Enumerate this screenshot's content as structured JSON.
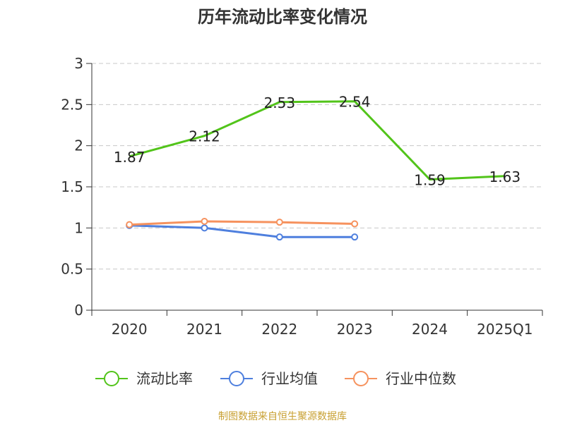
{
  "chart_data": {
    "type": "line",
    "title": "历年流动比率变化情况",
    "xlabel": "",
    "ylabel": "",
    "categories": [
      "2020",
      "2021",
      "2022",
      "2023",
      "2024",
      "2025Q1"
    ],
    "ylim": [
      0,
      3
    ],
    "yticks": [
      "0",
      "0.5",
      "1",
      "1.5",
      "2",
      "2.5",
      "3"
    ],
    "grid": true,
    "legend_position": "bottom",
    "series": [
      {
        "name": "流动比率",
        "color": "#52c41a",
        "values": [
          1.87,
          2.12,
          2.53,
          2.54,
          1.59,
          1.63
        ],
        "labels": [
          "1.87",
          "2.12",
          "2.53",
          "2.54",
          "1.59",
          "1.63"
        ]
      },
      {
        "name": "行业均值",
        "color": "#4e7fde",
        "values": [
          1.03,
          1.0,
          0.89,
          0.89,
          null,
          null
        ]
      },
      {
        "name": "行业中位数",
        "color": "#f6925e",
        "values": [
          1.04,
          1.08,
          1.07,
          1.05,
          null,
          null
        ]
      }
    ]
  },
  "footer": {
    "source": "制图数据来自恒生聚源数据库"
  }
}
